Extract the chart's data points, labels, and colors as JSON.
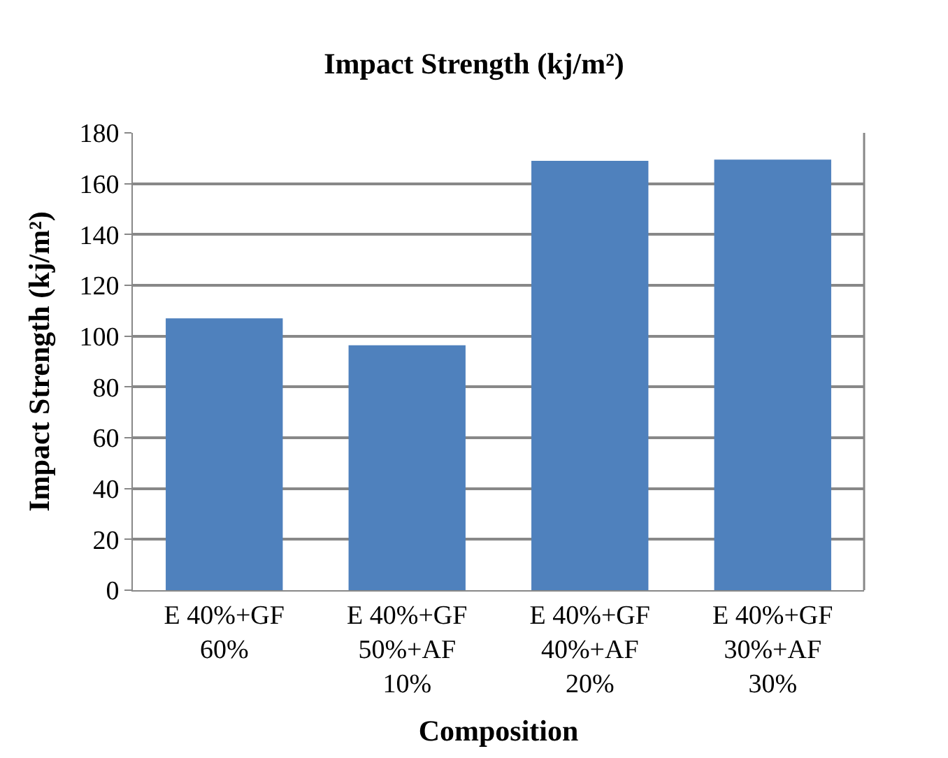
{
  "chart_data": {
    "type": "bar",
    "title": "Impact Strength (kj/m²)",
    "xlabel": "Composition",
    "ylabel": "Impact Strength (kj/m²)",
    "categories": [
      "E 40%+GF 60%",
      "E 40%+GF 50%+AF 10%",
      "E 40%+GF 40%+AF 20%",
      "E 40%+GF 30%+AF 30%"
    ],
    "values": [
      107,
      96.4,
      169,
      169.5
    ],
    "color": "#4f81bd",
    "ylim": [
      0,
      180
    ],
    "yticks": [
      0,
      20,
      40,
      60,
      80,
      100,
      120,
      140,
      160,
      180
    ],
    "grid": "y"
  }
}
